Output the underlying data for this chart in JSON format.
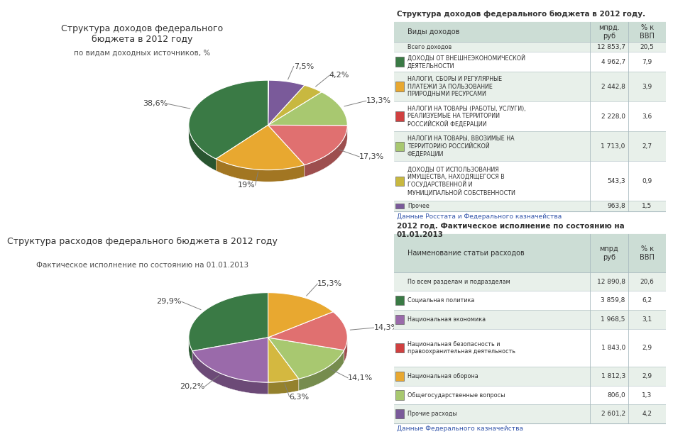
{
  "bg_color": "#ffffff",
  "top_title": "Структура доходов федерального\nбюджета в 2012 году",
  "top_subtitle": "по видам доходных источников, %",
  "pie1_values": [
    38.6,
    19.0,
    17.3,
    13.3,
    4.2,
    7.5,
    0.1
  ],
  "pie1_colors": [
    "#3a7a45",
    "#e8a830",
    "#e07070",
    "#a8c870",
    "#c8b840",
    "#7a5a9a",
    "#e0c8b8"
  ],
  "pie1_labels": [
    "38,6%",
    "19%",
    "17,3%",
    "13,3%",
    "4,2%",
    "7,5%",
    ""
  ],
  "pie1_startangle": 90,
  "bottom_title": "Структура расходов федерального бюджета в 2012 году",
  "bottom_subtitle": "Фактическое исполнение по состоянию на 01.01.2013",
  "pie2_values": [
    29.9,
    20.2,
    6.3,
    14.1,
    14.3,
    15.3
  ],
  "pie2_colors": [
    "#3a7a45",
    "#9a6aaa",
    "#d4b840",
    "#a8c870",
    "#e07070",
    "#e8a830"
  ],
  "pie2_labels": [
    "29,9%",
    "20,2%",
    "6,3%",
    "14,1%",
    "14,3%",
    "15,3%"
  ],
  "pie2_startangle": 90,
  "table1_title": "Структура доходов федерального бюджета в 2012 году.",
  "table1_col_header": [
    "Виды доходов",
    "мпрд.\nруб",
    "% к\nВВП"
  ],
  "table1_rows": [
    [
      "",
      "Всего доходов",
      "12 853,7",
      "20,5"
    ],
    [
      "#3a7a45",
      "ДОХОДЫ ОТ ВНЕШНЕЭКОНОМИЧЕСКОЙ\nДЕЯТЕЛЬНОСТИ",
      "4 962,7",
      "7,9"
    ],
    [
      "#e8a830",
      "НАЛОГИ, СБОРЫ И РЕГУЛЯРНЫЕ\nПЛАТЕЖИ ЗА ПОЛЬЗОВАНИЕ\nПРИРОДНЫМИ РЕСУРСАМИ",
      "2 442,8",
      "3,9"
    ],
    [
      "#d04040",
      "НАЛОГИ НА ТОВАРЫ (РАБОТЫ, УСЛУГИ),\nРЕАЛИЗУЕМЫЕ НА ТЕРРИТОРИИ\nРОССИЙСКОЙ ФЕДЕРАЦИИ",
      "2 228,0",
      "3,6"
    ],
    [
      "#a8c870",
      "НАЛОГИ НА ТОВАРЫ, ВВОЗИМЫЕ НА\nТЕРРИТОРИЮ РОССИЙСКОЙ\nФЕДЕРАЦИИ",
      "1 713,0",
      "2,7"
    ],
    [
      "#c8b840",
      "ДОХОДЫ ОТ ИСПОЛЬЗОВАНИЯ\nИМУЩЕСТВА, НАХОДЯЩЕГОСЯ В\nГОСУДАРСТВЕННОЙ И\nМУНИЦИПАЛЬНОЙ СОБСТВЕННОСТИ",
      "543,3",
      "0,9"
    ],
    [
      "#7a5a9a",
      "Прочее",
      "963,8",
      "1,5"
    ]
  ],
  "table1_link": "Данные Росстата и Федерального казначейства",
  "table2_title": "2012 год. Фактическое исполнение по состоянию на\n01.01.2013",
  "table2_col_header": [
    "Наименование статьи расходов",
    "мпрд\nруб",
    "% к\nВВП"
  ],
  "table2_rows": [
    [
      "",
      "По всем разделам и подразделам",
      "12 890,8",
      "20,6"
    ],
    [
      "#3a7a45",
      "Социальная политика",
      "3 859,8",
      "6,2"
    ],
    [
      "#9a6aaa",
      "Национальная экономика",
      "1 968,5",
      "3,1"
    ],
    [
      "#d04040",
      "Национальная безопасность и\nправоохранительная деятельность",
      "1 843,0",
      "2,9"
    ],
    [
      "#e8a830",
      "Национальная оборона",
      "1 812,3",
      "2,9"
    ],
    [
      "#a8c870",
      "Общегосударственные вопросы",
      "806,0",
      "1,3"
    ],
    [
      "#7a5a9a",
      "Прочие расходы",
      "2 601,2",
      "4,2"
    ]
  ],
  "table2_link": "Данные Федерального казначейства"
}
